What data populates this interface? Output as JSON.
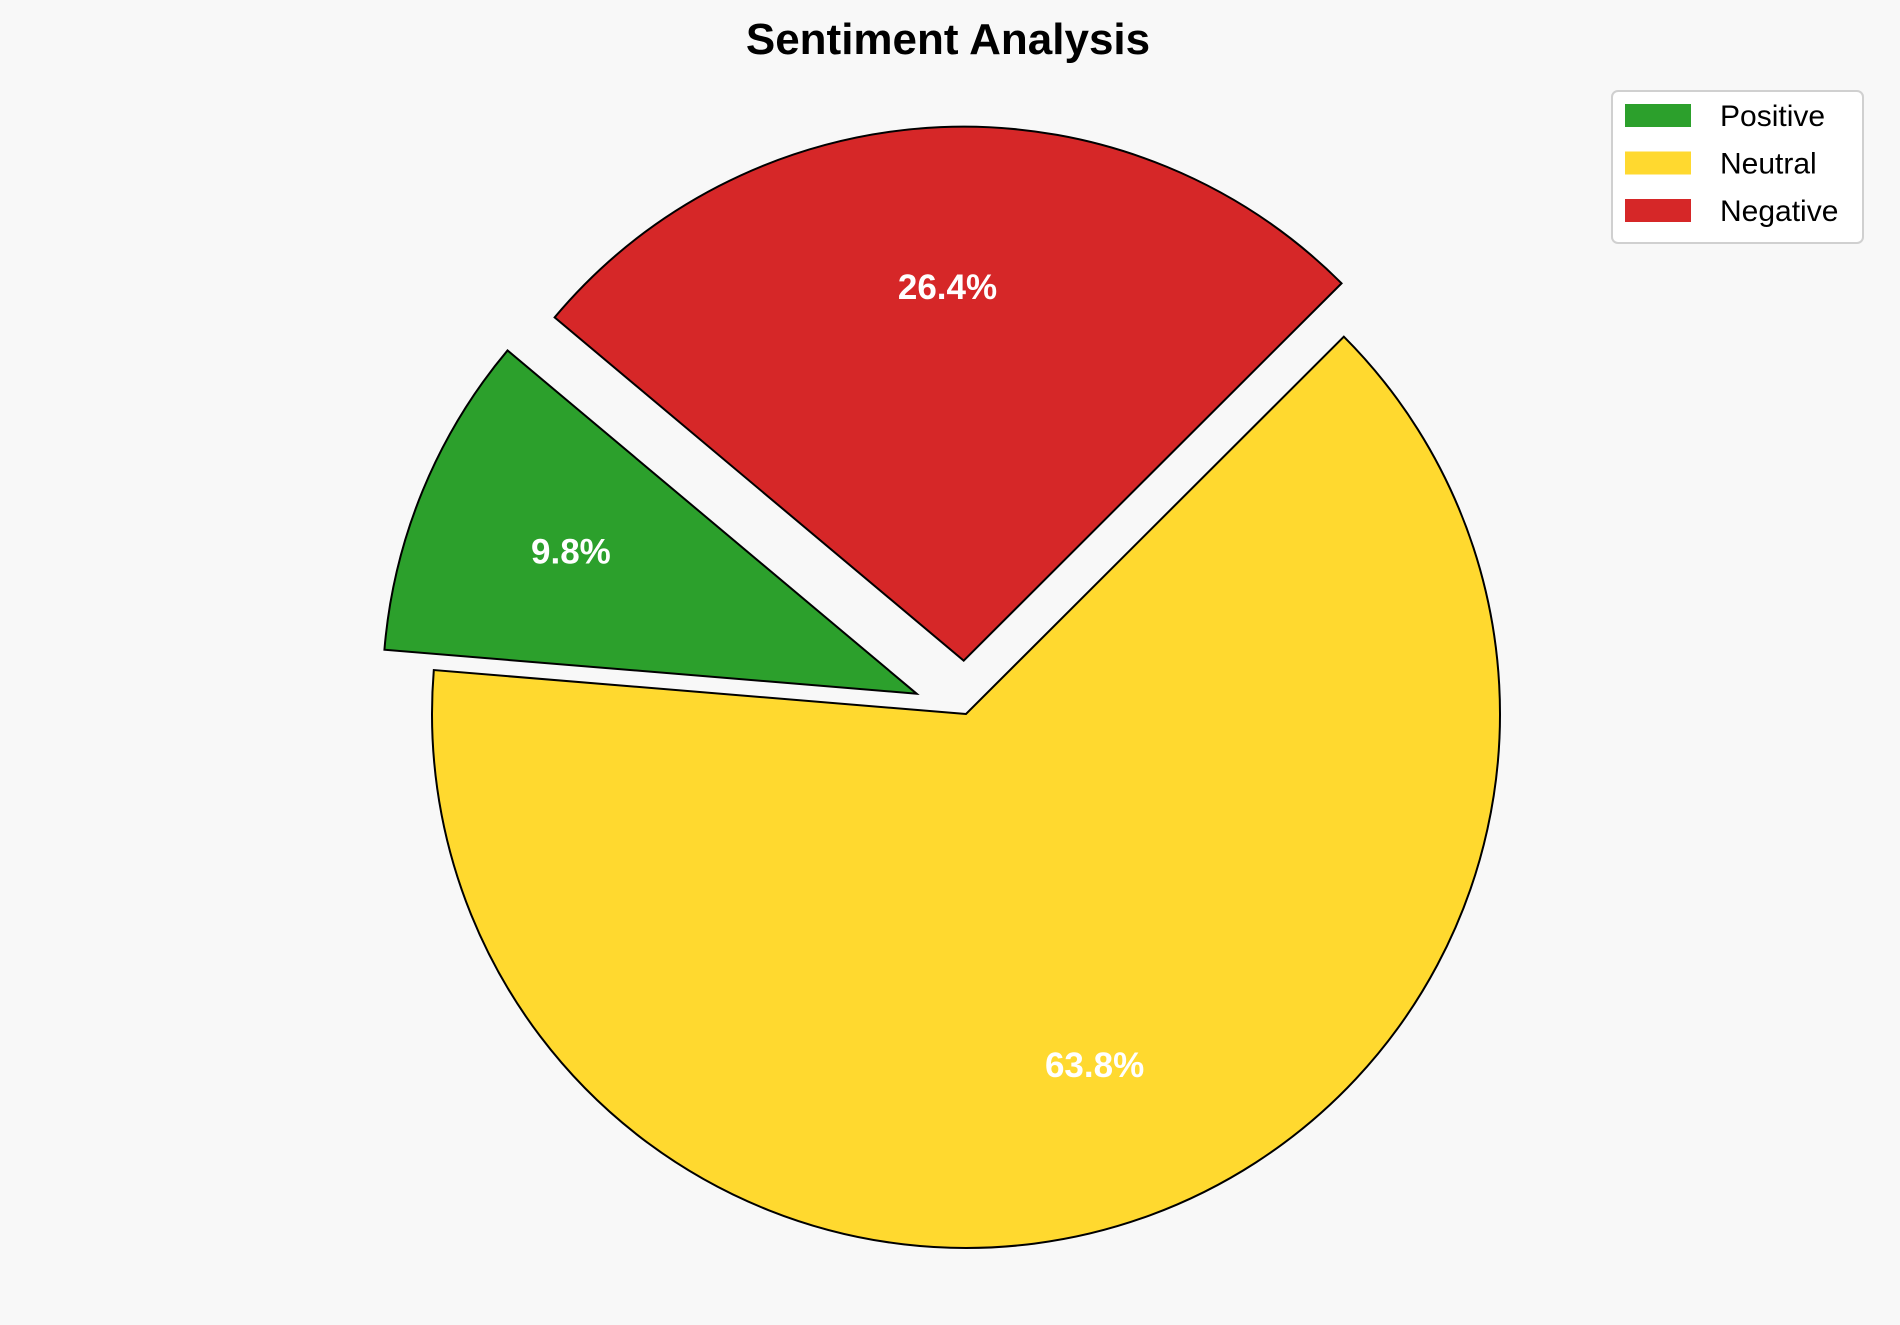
{
  "chart_data": {
    "type": "pie",
    "title": "Sentiment Analysis",
    "labels": [
      "Positive",
      "Neutral",
      "Negative"
    ],
    "values": [
      9.8,
      63.8,
      26.4
    ],
    "value_labels": [
      "9.8%",
      "63.8%",
      "26.4%"
    ],
    "colors": [
      "#2ca02c",
      "#ffd92f",
      "#d62728"
    ],
    "explode": [
      0.1,
      0,
      0.1
    ],
    "start_angle": 140,
    "counterclockwise": true,
    "edge_color": "#000000",
    "legend_position": "top-right"
  }
}
